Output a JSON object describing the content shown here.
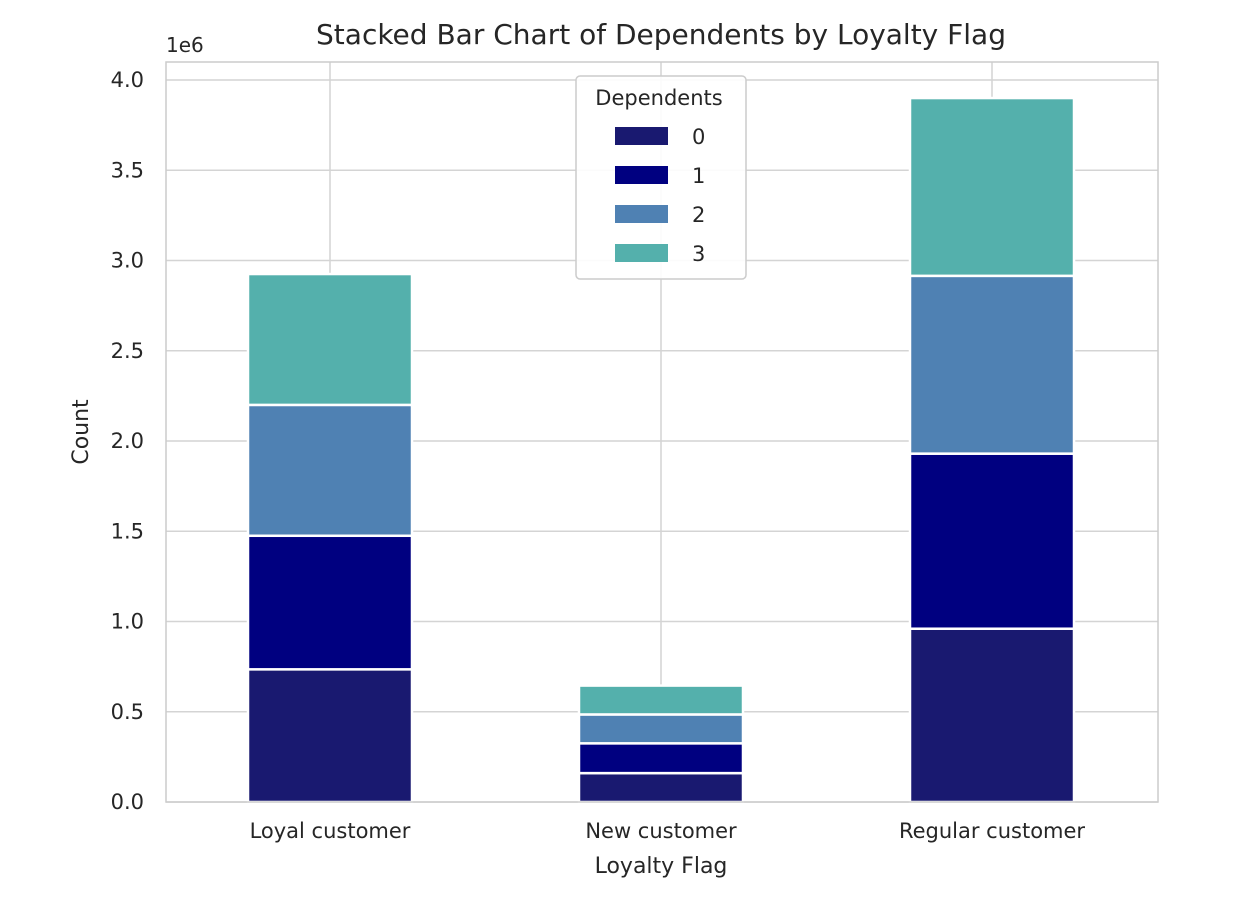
{
  "chart_data": {
    "type": "bar",
    "stacked": true,
    "title": "Stacked Bar Chart of Dependents by Loyalty Flag",
    "xlabel": "Loyalty Flag",
    "ylabel": "Count",
    "y_offset_label": "1e6",
    "categories": [
      "Loyal customer",
      "New customer",
      "Regular customer"
    ],
    "series": [
      {
        "name": "0",
        "color": "#191970",
        "values": [
          735000,
          160000,
          960000
        ]
      },
      {
        "name": "1",
        "color": "#000080",
        "values": [
          740000,
          165000,
          970000
        ]
      },
      {
        "name": "2",
        "color": "#4F81B3",
        "values": [
          725000,
          160000,
          985000
        ]
      },
      {
        "name": "3",
        "color": "#54B0AC",
        "values": [
          725000,
          160000,
          985000
        ]
      }
    ],
    "ylim": [
      0,
      4000000
    ],
    "yticks": [
      0,
      500000,
      1000000,
      1500000,
      2000000,
      2500000,
      3000000,
      3500000,
      4000000
    ],
    "ytick_labels": [
      "0.0",
      "0.5",
      "1.0",
      "1.5",
      "2.0",
      "2.5",
      "3.0",
      "3.5",
      "4.0"
    ],
    "grid": true,
    "legend": {
      "title": "Dependents",
      "position": "upper-center"
    }
  }
}
